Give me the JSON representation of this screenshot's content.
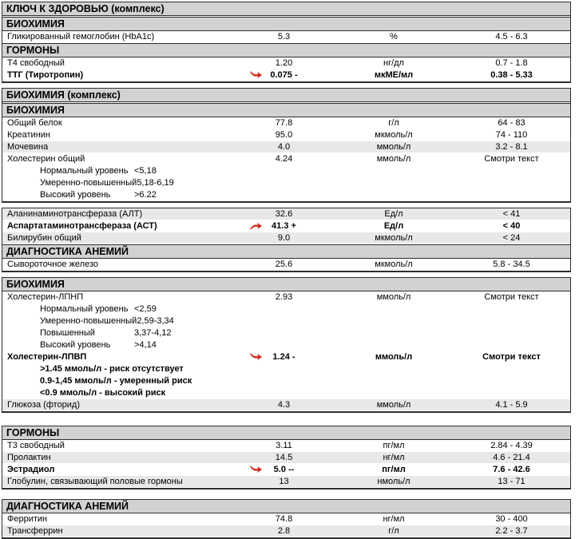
{
  "report_title": "КЛЮЧ К ЗДОРОВЬЮ (комплекс)",
  "colors": {
    "flag_red": "#d42b1f",
    "header_bg": "#d2d2d2",
    "shaded_row_bg": "#e8e8e8",
    "border": "#2e2e2e"
  },
  "blocks": [
    {
      "rows": [
        {
          "type": "header",
          "text": "КЛЮЧ К ЗДОРОВЬЮ (комплекс)"
        },
        {
          "type": "header",
          "text": "БИОХИМИЯ"
        },
        {
          "type": "data",
          "name": "Гликированный гемоглобин (HbA1c)",
          "value": "5.3",
          "unit": "%",
          "ref": "4.5 - 6.3",
          "shaded": false,
          "bold": false,
          "flag": null
        },
        {
          "type": "header",
          "text": "ГОРМОНЫ"
        },
        {
          "type": "data",
          "name": "Т4 свободный",
          "value": "1.20",
          "unit": "нг/дл",
          "ref": "0.7 - 1.8",
          "shaded": false,
          "bold": false,
          "flag": null
        },
        {
          "type": "data",
          "name": "ТТГ (Тиротропин)",
          "value": "0.075 -",
          "unit": "мкМЕ/мл",
          "ref": "0.38 - 5.33",
          "shaded": false,
          "bold": true,
          "flag": "down"
        }
      ]
    },
    {
      "rows": [
        {
          "type": "header",
          "text": "БИОХИМИЯ (комплекс)"
        },
        {
          "type": "header",
          "text": "БИОХИМИЯ"
        },
        {
          "type": "data",
          "name": "Общий белок",
          "value": "77.8",
          "unit": "г/л",
          "ref": "64 - 83",
          "shaded": false,
          "bold": false,
          "flag": null
        },
        {
          "type": "data",
          "name": "Креатинин",
          "value": "95.0",
          "unit": "мкмоль/л",
          "ref": "74 - 110",
          "shaded": false,
          "bold": false,
          "flag": null
        },
        {
          "type": "data",
          "name": "Мочевина",
          "value": "4.0",
          "unit": "ммоль/л",
          "ref": "3.2 - 8.1",
          "shaded": true,
          "bold": false,
          "flag": null
        },
        {
          "type": "data",
          "name": "Холестерин общий",
          "value": "4.24",
          "unit": "ммоль/л",
          "ref": "Смотри текст",
          "shaded": false,
          "bold": false,
          "flag": null
        },
        {
          "type": "sub",
          "label": "Нормальный уровень",
          "value": "<5,18"
        },
        {
          "type": "sub",
          "label": "Умеренно-повышенный",
          "value": "5,18-6,19"
        },
        {
          "type": "sub",
          "label": "Высокий уровень",
          "value": ">6.22"
        }
      ]
    },
    {
      "rows": [
        {
          "type": "data",
          "name": "Аланинаминотрансфераза (АЛТ)",
          "value": "32.6",
          "unit": "Ед/л",
          "ref": "< 41",
          "shaded": true,
          "bold": false,
          "flag": null
        },
        {
          "type": "data",
          "name": "Аспартатаминотрансфераза (АСТ)",
          "value": "41.3 +",
          "unit": "Ед/л",
          "ref": "< 40",
          "shaded": false,
          "bold": true,
          "flag": "up"
        },
        {
          "type": "data",
          "name": "Билирубин общий",
          "value": "9.0",
          "unit": "мкмоль/л",
          "ref": "< 24",
          "shaded": true,
          "bold": false,
          "flag": null
        },
        {
          "type": "header",
          "text": "ДИАГНОСТИКА АНЕМИЙ"
        },
        {
          "type": "data",
          "name": "Сывороточное железо",
          "value": "25.6",
          "unit": "мкмоль/л",
          "ref": "5.8 - 34.5",
          "shaded": false,
          "bold": false,
          "flag": null
        }
      ]
    },
    {
      "rows": [
        {
          "type": "header",
          "text": "БИОХИМИЯ"
        },
        {
          "type": "data",
          "name": "Холестерин-ЛПНП",
          "value": "2.93",
          "unit": "ммоль/л",
          "ref": "Смотри текст",
          "shaded": false,
          "bold": false,
          "flag": null
        },
        {
          "type": "sub",
          "label": "Нормальный уровень",
          "value": "<2,59"
        },
        {
          "type": "sub",
          "label": "Умеренно-повышенный",
          "value": "2,59-3,34"
        },
        {
          "type": "sub",
          "label": "Повышенный",
          "value": "3,37-4,12"
        },
        {
          "type": "sub",
          "label": "Высокий уровень",
          "value": ">4,14"
        },
        {
          "type": "data",
          "name": "Холестерин-ЛПВП",
          "value": "1.24 -",
          "unit": "ммоль/л",
          "ref": "Смотри текст",
          "shaded": false,
          "bold": true,
          "flag": "down"
        },
        {
          "type": "subtext",
          "text": ">1.45 ммоль/л - риск отсутствует"
        },
        {
          "type": "subtext",
          "text": "0.9-1,45 ммоль/л - умеренный риск"
        },
        {
          "type": "subtext",
          "text": "<0.9 ммоль/л - высокий риск"
        },
        {
          "type": "data",
          "name": "Глюкоза (фторид)",
          "value": "4.3",
          "unit": "ммоль/л",
          "ref": "4.1 - 5.9",
          "shaded": true,
          "bold": false,
          "flag": null
        }
      ]
    },
    {
      "rows": [
        {
          "type": "header",
          "text": "ГОРМОНЫ"
        },
        {
          "type": "data",
          "name": "Т3 свободный",
          "value": "3.11",
          "unit": "пг/мл",
          "ref": "2.84 - 4.39",
          "shaded": false,
          "bold": false,
          "flag": null
        },
        {
          "type": "data",
          "name": "Пролактин",
          "value": "14.5",
          "unit": "нг/мл",
          "ref": "4.6 - 21.4",
          "shaded": true,
          "bold": false,
          "flag": null
        },
        {
          "type": "data",
          "name": "Эстрадиол",
          "value": "5.0 --",
          "unit": "пг/мл",
          "ref": "7.6 - 42.6",
          "shaded": false,
          "bold": true,
          "flag": "down"
        },
        {
          "type": "data",
          "name": "Глобулин, связывающий половые гормоны",
          "value": "13",
          "unit": "нмоль/л",
          "ref": "13 - 71",
          "shaded": true,
          "bold": false,
          "flag": null
        }
      ]
    },
    {
      "rows": [
        {
          "type": "header",
          "text": "ДИАГНОСТИКА АНЕМИЙ"
        },
        {
          "type": "data",
          "name": "Ферритин",
          "value": "74.8",
          "unit": "нг/мл",
          "ref": "30 - 400",
          "shaded": false,
          "bold": false,
          "flag": null
        },
        {
          "type": "data",
          "name": "Трансферрин",
          "value": "2.8",
          "unit": "г/л",
          "ref": "2.2 - 3.7",
          "shaded": true,
          "bold": false,
          "flag": null
        }
      ]
    }
  ]
}
